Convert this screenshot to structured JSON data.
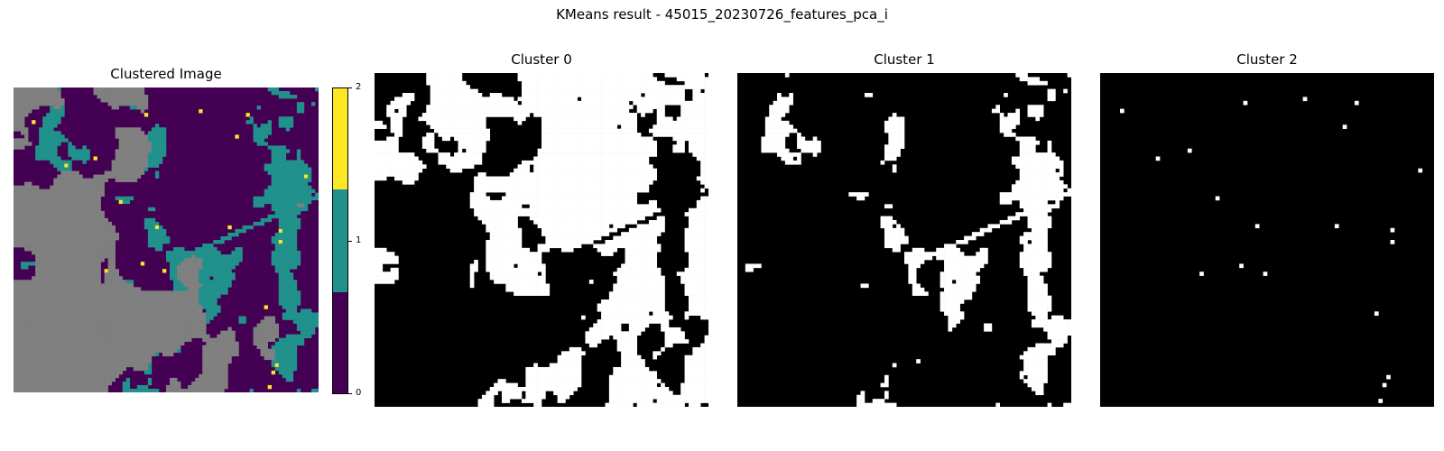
{
  "figure": {
    "suptitle": "KMeans result - 45015_20230726_features_pca_i"
  },
  "chart_data": [
    {
      "type": "heatmap",
      "title": "Clustered Image",
      "axes": "off",
      "colormap": "viridis (3 discrete levels)",
      "colorbar": {
        "ticks": [
          "0",
          "1",
          "2"
        ],
        "levels": [
          {
            "value": 0,
            "color": "#440154"
          },
          {
            "value": 1,
            "color": "#21918c"
          },
          {
            "value": 2,
            "color": "#fde725"
          }
        ],
        "range": [
          0,
          2
        ]
      },
      "masked_color": "#808080"
    },
    {
      "type": "heatmap",
      "title": "Cluster 0",
      "axes": "off",
      "colors": {
        "in_cluster": "#ffffff",
        "other": "#000000"
      },
      "approx_in_cluster_fraction": 0.45
    },
    {
      "type": "heatmap",
      "title": "Cluster 1",
      "axes": "off",
      "colors": {
        "in_cluster": "#ffffff",
        "other": "#000000"
      },
      "approx_in_cluster_fraction": 0.22
    },
    {
      "type": "heatmap",
      "title": "Cluster 2",
      "axes": "off",
      "colors": {
        "in_cluster": "#ffffff",
        "other": "#000000"
      },
      "approx_in_cluster_fraction": 0.002
    }
  ]
}
